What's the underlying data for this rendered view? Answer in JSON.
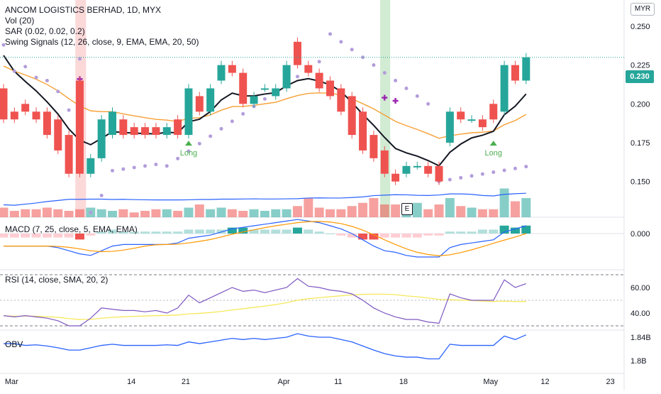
{
  "legend": {
    "main": [
      "ANCOM LOGISTICS BERHAD, 1D, MYX",
      "Vol (20)",
      "SAR (0.02, 0.02, 0.2)",
      "Swing Signals (12, 26, close, 9, EMA, EMA, 20, 50)"
    ],
    "macd": "MACD (7, 25, close, 5, EMA, EMA)",
    "rsi": "RSI (14, close, SMA, 20, 2)",
    "obv": "OBV"
  },
  "currency": "MYR",
  "price_tag": "0.230",
  "earnings_badge": "E",
  "colors": {
    "up": "#26a69a",
    "down": "#ef5350",
    "ema_fast": "#131722",
    "ema_slow": "#f7a035",
    "sar": "#b39ddb",
    "vol_ma": "#2962ff",
    "rsi": "#7e57c2",
    "rsi_ma": "#f5e64c",
    "obv": "#2962ff"
  },
  "chart_data": [
    {
      "type": "candlestick",
      "name": "price",
      "title": "ANCOM LOGISTICS BERHAD, 1D, MYX",
      "x": [
        "Mar",
        "",
        "",
        "",
        "",
        "",
        "",
        "",
        "",
        "",
        "",
        "",
        "14",
        "",
        "",
        "",
        "",
        "21",
        "",
        "",
        "",
        "",
        "",
        "",
        "",
        "",
        "Apr",
        "",
        "",
        "",
        "",
        "11",
        "",
        "",
        "",
        "",
        "",
        "18",
        "",
        "",
        "",
        "",
        "",
        "",
        "",
        "",
        "May",
        "",
        ""
      ],
      "open": [
        0.21,
        0.195,
        0.2,
        0.195,
        0.195,
        0.19,
        0.18,
        0.215,
        0.155,
        0.165,
        0.18,
        0.19,
        0.185,
        0.185,
        0.185,
        0.18,
        0.19,
        0.18,
        0.205,
        0.195,
        0.215,
        0.225,
        0.22,
        0.2,
        0.21,
        0.205,
        0.21,
        0.24,
        0.225,
        0.22,
        0.215,
        0.21,
        0.205,
        0.195,
        0.18,
        0.17,
        0.155,
        0.155,
        0.16,
        0.16,
        0.16,
        0.175,
        0.195,
        0.19,
        0.19,
        0.2,
        0.195,
        0.225,
        0.215
      ],
      "close": [
        0.19,
        0.19,
        0.195,
        0.19,
        0.18,
        0.17,
        0.155,
        0.155,
        0.165,
        0.19,
        0.195,
        0.18,
        0.18,
        0.18,
        0.18,
        0.185,
        0.18,
        0.21,
        0.195,
        0.21,
        0.225,
        0.22,
        0.2,
        0.205,
        0.21,
        0.21,
        0.225,
        0.225,
        0.22,
        0.21,
        0.205,
        0.195,
        0.18,
        0.17,
        0.165,
        0.155,
        0.15,
        0.16,
        0.16,
        0.155,
        0.15,
        0.195,
        0.19,
        0.19,
        0.185,
        0.19,
        0.225,
        0.215,
        0.23
      ],
      "ylim": [
        0.14,
        0.257
      ],
      "ticks": [
        0.15,
        0.175,
        0.2,
        0.225,
        0.25
      ],
      "tick_labels": [
        "0.150",
        "0.175",
        "0.200",
        "0.225",
        "0.250"
      ],
      "x_ticks": [
        "Mar",
        "14",
        "21",
        "Apr",
        "11",
        "18",
        "May",
        "12",
        "23"
      ],
      "signals": [
        "Long",
        "Long"
      ],
      "last_price": 0.23
    },
    {
      "type": "bar",
      "name": "Vol (20)",
      "values": [
        6,
        4,
        5,
        5,
        6,
        5,
        4,
        5,
        6,
        5,
        4,
        5,
        3,
        4,
        5,
        5,
        4,
        6,
        8,
        5,
        6,
        5,
        4,
        5,
        4,
        5,
        5,
        7,
        12,
        6,
        5,
        5,
        7,
        9,
        12,
        8,
        8,
        6,
        9,
        5,
        8,
        12,
        7,
        6,
        5,
        5,
        18,
        10,
        12
      ]
    },
    {
      "type": "line",
      "name": "MACD (7, 25, close, 5, EMA, EMA)",
      "ticks": [
        0.0
      ],
      "tick_labels": [
        "0.000"
      ]
    },
    {
      "type": "line",
      "name": "RSI (14, close, SMA, 20, 2)",
      "values": [
        38,
        37,
        38,
        37,
        36,
        34,
        30,
        30,
        36,
        44,
        43,
        42,
        42,
        41,
        42,
        40,
        44,
        54,
        48,
        52,
        56,
        60,
        57,
        58,
        56,
        58,
        60,
        67,
        61,
        60,
        58,
        57,
        55,
        50,
        44,
        40,
        37,
        35,
        35,
        33,
        32,
        55,
        52,
        50,
        50,
        50,
        66,
        60,
        63
      ],
      "ylim": [
        25,
        75
      ],
      "ticks": [
        40.0,
        60.0
      ],
      "tick_labels": [
        "40.00",
        "60.00"
      ]
    },
    {
      "type": "line",
      "name": "OBV",
      "ticks": [
        1.8,
        1.84
      ],
      "tick_labels": [
        "1.8B",
        "1.84B"
      ]
    }
  ]
}
